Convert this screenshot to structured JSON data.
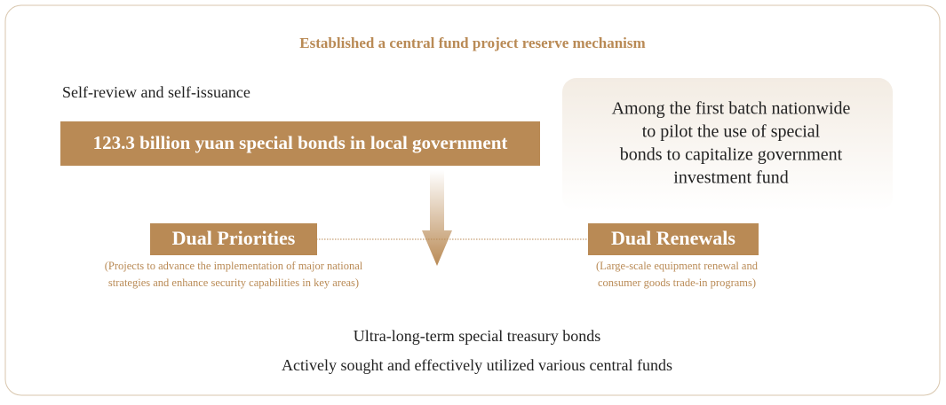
{
  "header": {
    "title": "Established a central fund project reserve mechanism"
  },
  "left": {
    "label": "Self-review and self-issuance",
    "banner": "123.3 billion yuan special bonds in local government"
  },
  "right": {
    "text_lines": [
      "Among the first batch nationwide",
      "to pilot the use of special",
      "bonds to capitalize government",
      "investment fund"
    ]
  },
  "priorities": {
    "title": "Dual Priorities",
    "note_lines": [
      "(Projects to advance the implementation of major national",
      "strategies and enhance security capabilities in key areas)"
    ]
  },
  "renewals": {
    "title": "Dual Renewals",
    "note_lines": [
      "(Large-scale equipment renewal and",
      "consumer goods trade-in programs)"
    ]
  },
  "footer": {
    "lines": [
      "Ultra-long-term special treasury bonds",
      "Actively sought and effectively utilized various central funds"
    ]
  }
}
